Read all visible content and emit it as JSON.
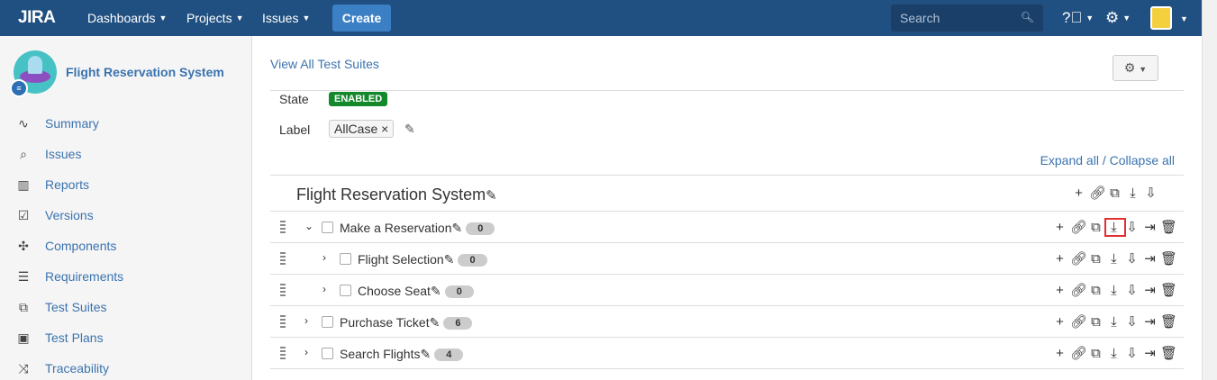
{
  "header": {
    "logo": "JIRA",
    "nav": [
      "Dashboards",
      "Projects",
      "Issues"
    ],
    "create": "Create",
    "search_placeholder": "Search"
  },
  "sidebar": {
    "project": "Flight Reservation System",
    "items": [
      {
        "label": "Summary",
        "icon": "activity-icon"
      },
      {
        "label": "Issues",
        "icon": "issues-icon"
      },
      {
        "label": "Reports",
        "icon": "reports-icon"
      },
      {
        "label": "Versions",
        "icon": "versions-icon"
      },
      {
        "label": "Components",
        "icon": "puzzle-icon"
      },
      {
        "label": "Requirements",
        "icon": "list-icon"
      },
      {
        "label": "Test Suites",
        "icon": "test-suite-icon"
      },
      {
        "label": "Test Plans",
        "icon": "test-plan-icon"
      },
      {
        "label": "Traceability",
        "icon": "shuffle-icon"
      }
    ]
  },
  "main": {
    "view_all": "View All Test Suites",
    "state_label": "State",
    "state": "ENABLED",
    "state_color": "#14892c",
    "label_label": "Label",
    "label_tag": "AllCase",
    "expand_all": "Expand all",
    "separator": " / ",
    "collapse_all": "Collapse all",
    "root": "Flight Reservation System",
    "rows": [
      {
        "name": "Make a Reservation",
        "count": "0",
        "level": 0,
        "expanded": true,
        "highlight_export": true
      },
      {
        "name": "Flight Selection",
        "count": "0",
        "level": 1,
        "expanded": false
      },
      {
        "name": "Choose Seat",
        "count": "0",
        "level": 1,
        "expanded": false
      },
      {
        "name": "Purchase Ticket",
        "count": "6",
        "level": 0,
        "expanded": false
      },
      {
        "name": "Search Flights",
        "count": "4",
        "level": 0,
        "expanded": false
      }
    ]
  }
}
